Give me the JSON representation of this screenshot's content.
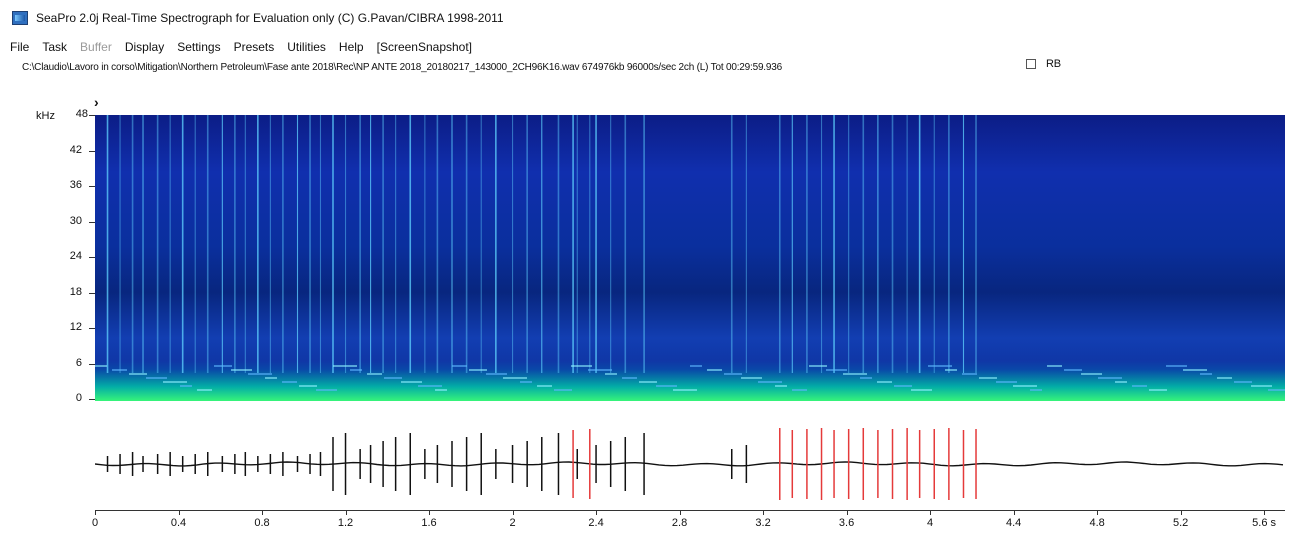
{
  "window": {
    "title": "SeaPro 2.0j Real-Time Spectrograph for Evaluation only  (C) G.Pavan/CIBRA 1998-2011",
    "icon": "spectrograph-app-icon"
  },
  "menu": [
    {
      "label": "File",
      "enabled": true
    },
    {
      "label": "Task",
      "enabled": true
    },
    {
      "label": "Buffer",
      "enabled": false
    },
    {
      "label": "Display",
      "enabled": true
    },
    {
      "label": "Settings",
      "enabled": true
    },
    {
      "label": "Presets",
      "enabled": true
    },
    {
      "label": "Utilities",
      "enabled": true
    },
    {
      "label": "Help",
      "enabled": true
    },
    {
      "label": "[ScreenSnapshot]",
      "enabled": true
    }
  ],
  "path_text": "C:\\Claudio\\Lavoro in corso\\Mitigation\\Northern Petroleum\\Fase ante 2018\\Rec\\NP ANTE 2018_20180217_143000_2CH96K16.wav 674976kb 96000s/sec 2ch (L)  Tot 00:29:59.936",
  "rb": {
    "label": "RB",
    "checked": false
  },
  "colors": {
    "spectrogram_low": "#0c1d86",
    "spectrogram_high": "#39ff78",
    "click_line": "#5fd3ff",
    "waveform": "#111111",
    "highlight": "#e53a3a"
  },
  "spectrogram": {
    "unit": "kHz",
    "y_ticks": [
      "48",
      "42",
      "36",
      "30",
      "24",
      "18",
      "12",
      "6",
      "0"
    ]
  },
  "chart_data": {
    "type": "line",
    "x_unit": "s",
    "x_ticks": [
      "0",
      "0.4",
      "0.8",
      "1.2",
      "1.6",
      "2",
      "2.4",
      "2.8",
      "3.2",
      "3.6",
      "4",
      "4.4",
      "4.8",
      "5.2",
      "5.6 s"
    ],
    "click_times_black": [
      0.06,
      0.12,
      0.18,
      0.23,
      0.3,
      0.36,
      0.42,
      0.48,
      0.54,
      0.61,
      0.67,
      0.72,
      0.78,
      0.84,
      0.9,
      0.97,
      1.03,
      1.08,
      1.14,
      1.2,
      1.27,
      1.32,
      1.38,
      1.44,
      1.51,
      1.58,
      1.64,
      1.71,
      1.78,
      1.85,
      1.92,
      2,
      2.07,
      2.14,
      2.22,
      2.31,
      2.4,
      2.47,
      2.54,
      2.63,
      3.05,
      3.12
    ],
    "click_times_red": [
      2.29,
      2.37,
      3.28,
      3.34,
      3.41,
      3.48,
      3.54,
      3.61,
      3.68,
      3.75,
      3.82,
      3.89,
      3.95,
      4.02,
      4.09,
      4.16,
      4.22
    ]
  }
}
